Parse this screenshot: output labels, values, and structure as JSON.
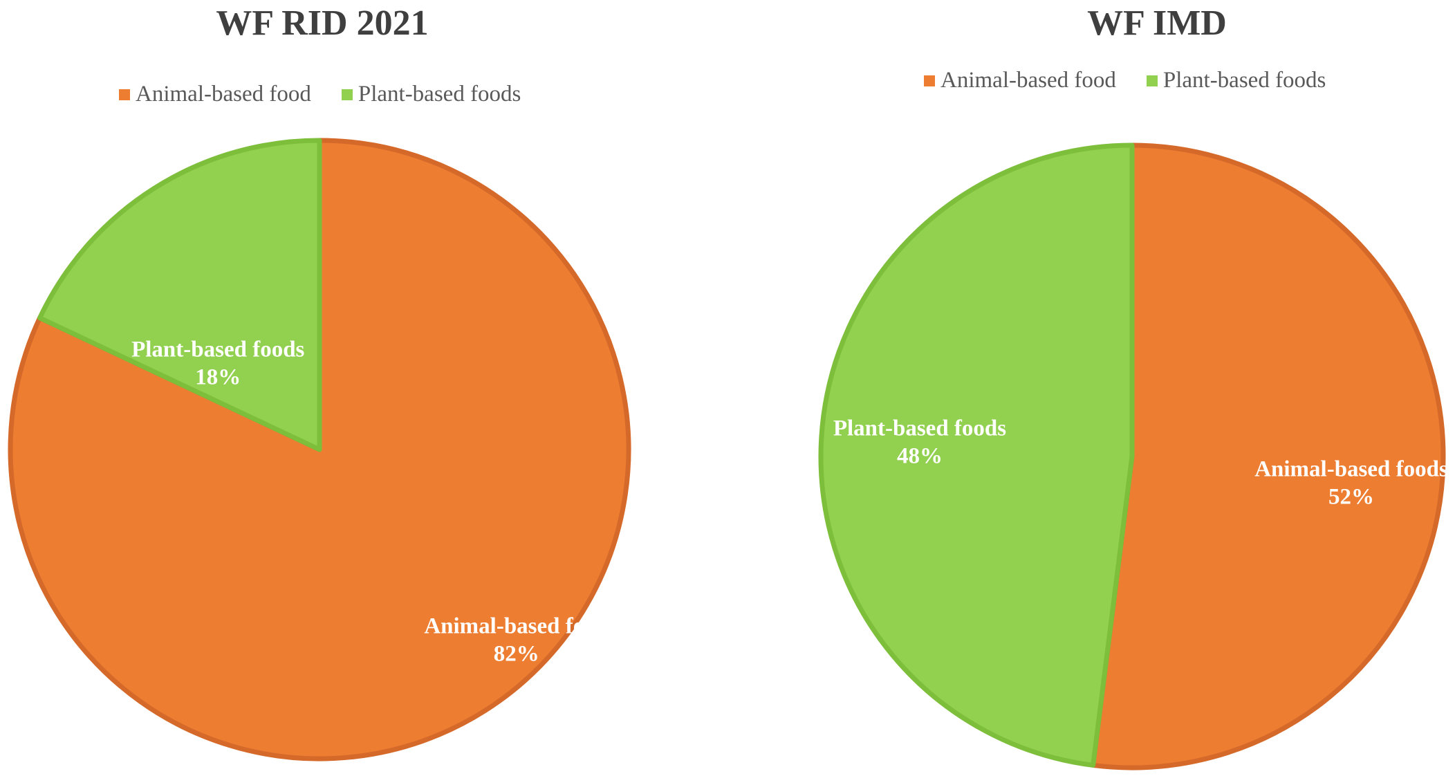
{
  "chart_data": [
    {
      "type": "pie",
      "title": "WF RID 2021",
      "legend": [
        "Animal-based food",
        "Plant-based foods"
      ],
      "legend_position": "top",
      "slices": [
        {
          "label": "Animal-based food",
          "value": 82,
          "value_label": "82%",
          "color": "#ED7D31"
        },
        {
          "label": "Plant-based foods",
          "value": 18,
          "value_label": "18%",
          "color": "#92D050"
        }
      ]
    },
    {
      "type": "pie",
      "title": "WF IMD",
      "legend": [
        "Animal-based food",
        "Plant-based foods"
      ],
      "legend_position": "top",
      "slices": [
        {
          "label": "Animal-based foods",
          "value": 52,
          "value_label": "52%",
          "color": "#ED7D31"
        },
        {
          "label": "Plant-based foods",
          "value": 48,
          "value_label": "48%",
          "color": "#92D050"
        }
      ]
    }
  ]
}
